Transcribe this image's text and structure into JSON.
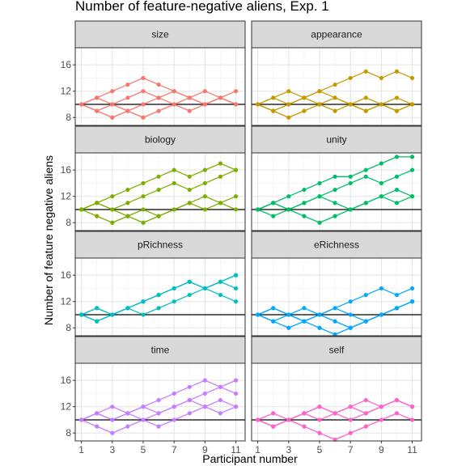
{
  "chart_data": {
    "type": "line",
    "title": "Number of feature-negative aliens, Exp. 1",
    "xlabel": "Participant number",
    "ylabel": "Number of feature negative aliens",
    "x_ticks": [
      "1",
      "3",
      "5",
      "7",
      "9",
      "11"
    ],
    "y_ticks": [
      "8",
      "12",
      "16"
    ],
    "xlim": [
      0.6,
      11.6
    ],
    "ylim": [
      6.8,
      18.6
    ],
    "reference_line": 10,
    "grid": true,
    "facets": [
      {
        "name": "size",
        "color": "#F8766D",
        "series": [
          {
            "x": [
              1,
              2,
              3,
              4,
              5,
              6,
              7,
              8,
              9,
              10,
              11
            ],
            "y": [
              10,
              11,
              12,
              13,
              14,
              13,
              12,
              11,
              10,
              11,
              12
            ]
          },
          {
            "x": [
              1,
              2,
              3,
              4,
              5,
              6,
              7,
              8,
              9,
              10,
              11
            ],
            "y": [
              10,
              9,
              8,
              9,
              10,
              11,
              12,
              11,
              10,
              11,
              10
            ]
          },
          {
            "x": [
              1,
              2,
              3,
              4,
              5,
              6,
              7,
              8,
              9,
              10,
              11
            ],
            "y": [
              10,
              9,
              10,
              9,
              8,
              9,
              10,
              11,
              12,
              11,
              10
            ]
          },
          {
            "x": [
              1,
              2,
              3,
              4,
              5,
              6,
              7,
              8,
              9,
              10,
              11
            ],
            "y": [
              10,
              11,
              10,
              11,
              12,
              11,
              10,
              9,
              10,
              11,
              10
            ]
          }
        ]
      },
      {
        "name": "appearance",
        "color": "#C49A00",
        "series": [
          {
            "x": [
              1,
              2,
              3,
              4,
              5,
              6,
              7,
              8,
              9,
              10,
              11
            ],
            "y": [
              10,
              11,
              12,
              11,
              12,
              13,
              14,
              15,
              14,
              15,
              14
            ]
          },
          {
            "x": [
              1,
              2,
              3,
              4,
              5,
              6,
              7,
              8,
              9,
              10,
              11
            ],
            "y": [
              10,
              9,
              10,
              11,
              10,
              11,
              10,
              9,
              10,
              11,
              10
            ]
          },
          {
            "x": [
              1,
              2,
              3,
              4,
              5,
              6,
              7,
              8,
              9,
              10,
              11
            ],
            "y": [
              10,
              9,
              8,
              9,
              10,
              9,
              10,
              11,
              10,
              9,
              10
            ]
          },
          {
            "x": [
              1,
              2,
              3,
              4,
              5,
              6,
              7,
              8,
              9,
              10,
              11
            ],
            "y": [
              10,
              11,
              10,
              11,
              12,
              11,
              10,
              9,
              10,
              9,
              10
            ]
          }
        ]
      },
      {
        "name": "biology",
        "color": "#7CAE00",
        "series": [
          {
            "x": [
              1,
              2,
              3,
              4,
              5,
              6,
              7,
              8,
              9,
              10,
              11
            ],
            "y": [
              10,
              11,
              12,
              13,
              14,
              15,
              16,
              15,
              16,
              17,
              16
            ]
          },
          {
            "x": [
              1,
              2,
              3,
              4,
              5,
              6,
              7,
              8,
              9,
              10,
              11
            ],
            "y": [
              10,
              11,
              10,
              11,
              12,
              13,
              14,
              13,
              14,
              15,
              16
            ]
          },
          {
            "x": [
              1,
              2,
              3,
              4,
              5,
              6,
              7,
              8,
              9,
              10,
              11
            ],
            "y": [
              10,
              9,
              8,
              9,
              10,
              9,
              10,
              11,
              12,
              11,
              12
            ]
          },
          {
            "x": [
              1,
              2,
              3,
              4,
              5,
              6,
              7,
              8,
              9,
              10,
              11
            ],
            "y": [
              10,
              11,
              10,
              9,
              8,
              9,
              10,
              11,
              10,
              11,
              10
            ]
          }
        ]
      },
      {
        "name": "unity",
        "color": "#00BE67",
        "series": [
          {
            "x": [
              1,
              2,
              3,
              4,
              5,
              6,
              7,
              8,
              9,
              10,
              11
            ],
            "y": [
              10,
              11,
              12,
              13,
              14,
              15,
              15,
              16,
              17,
              18,
              18
            ]
          },
          {
            "x": [
              1,
              2,
              3,
              4,
              5,
              6,
              7,
              8,
              9,
              10,
              11
            ],
            "y": [
              10,
              11,
              10,
              11,
              12,
              13,
              14,
              15,
              14,
              15,
              16
            ]
          },
          {
            "x": [
              1,
              2,
              3,
              4,
              5,
              6,
              7,
              8,
              9,
              10,
              11
            ],
            "y": [
              10,
              9,
              10,
              11,
              12,
              11,
              10,
              11,
              12,
              11,
              12
            ]
          },
          {
            "x": [
              1,
              2,
              3,
              4,
              5,
              6,
              7,
              8,
              9,
              10,
              11
            ],
            "y": [
              10,
              11,
              10,
              9,
              8,
              9,
              10,
              11,
              12,
              13,
              12
            ]
          }
        ]
      },
      {
        "name": "pRichness",
        "color": "#00BFC4",
        "series": [
          {
            "x": [
              1,
              2,
              3,
              4,
              5,
              6,
              7,
              8,
              9,
              10,
              11
            ],
            "y": [
              10,
              11,
              10,
              11,
              12,
              13,
              14,
              15,
              14,
              15,
              16
            ]
          },
          {
            "x": [
              1,
              2,
              3,
              4,
              5,
              6,
              7,
              8,
              9,
              10,
              11
            ],
            "y": [
              10,
              9,
              10,
              11,
              12,
              13,
              14,
              15,
              14,
              15,
              14
            ]
          },
          {
            "x": [
              1,
              2,
              3,
              4,
              5,
              6,
              7,
              8,
              9,
              10,
              11
            ],
            "y": [
              10,
              11,
              10,
              11,
              10,
              11,
              12,
              13,
              14,
              15,
              16
            ]
          },
          {
            "x": [
              1,
              2,
              3,
              4,
              5,
              6,
              7,
              8,
              9,
              10,
              11
            ],
            "y": [
              10,
              9,
              10,
              11,
              12,
              13,
              14,
              15,
              14,
              13,
              12
            ]
          }
        ]
      },
      {
        "name": "eRichness",
        "color": "#00A9FF",
        "series": [
          {
            "x": [
              1,
              2,
              3,
              4,
              5,
              6,
              7,
              8,
              9,
              10,
              11
            ],
            "y": [
              10,
              11,
              10,
              9,
              10,
              11,
              12,
              13,
              14,
              13,
              14
            ]
          },
          {
            "x": [
              1,
              2,
              3,
              4,
              5,
              6,
              7,
              8,
              9,
              10,
              11
            ],
            "y": [
              10,
              9,
              8,
              9,
              10,
              11,
              10,
              9,
              10,
              11,
              12
            ]
          },
          {
            "x": [
              1,
              2,
              3,
              4,
              5,
              6,
              7,
              8,
              9,
              10,
              11
            ],
            "y": [
              10,
              11,
              10,
              11,
              10,
              9,
              8,
              9,
              10,
              11,
              12
            ]
          },
          {
            "x": [
              1,
              2,
              3,
              4,
              5,
              6,
              7,
              8,
              9,
              10,
              11
            ],
            "y": [
              10,
              9,
              10,
              9,
              8,
              7,
              8,
              9,
              10,
              11,
              12
            ]
          }
        ]
      },
      {
        "name": "time",
        "color": "#C77CFF",
        "series": [
          {
            "x": [
              1,
              2,
              3,
              4,
              5,
              6,
              7,
              8,
              9,
              10,
              11
            ],
            "y": [
              10,
              11,
              12,
              11,
              12,
              13,
              14,
              15,
              16,
              15,
              16
            ]
          },
          {
            "x": [
              1,
              2,
              3,
              4,
              5,
              6,
              7,
              8,
              9,
              10,
              11
            ],
            "y": [
              10,
              11,
              10,
              11,
              12,
              11,
              12,
              13,
              14,
              15,
              14
            ]
          },
          {
            "x": [
              1,
              2,
              3,
              4,
              5,
              6,
              7,
              8,
              9,
              10,
              11
            ],
            "y": [
              10,
              9,
              8,
              9,
              10,
              11,
              12,
              13,
              12,
              13,
              12
            ]
          },
          {
            "x": [
              1,
              2,
              3,
              4,
              5,
              6,
              7,
              8,
              9,
              10,
              11
            ],
            "y": [
              10,
              11,
              10,
              11,
              10,
              9,
              10,
              11,
              12,
              11,
              12
            ]
          }
        ]
      },
      {
        "name": "self",
        "color": "#FF61CC",
        "series": [
          {
            "x": [
              1,
              2,
              3,
              4,
              5,
              6,
              7,
              8,
              9,
              10,
              11
            ],
            "y": [
              10,
              11,
              10,
              11,
              12,
              11,
              12,
              13,
              12,
              13,
              12
            ]
          },
          {
            "x": [
              1,
              2,
              3,
              4,
              5,
              6,
              7,
              8,
              9,
              10,
              11
            ],
            "y": [
              10,
              9,
              10,
              11,
              10,
              11,
              12,
              11,
              12,
              13,
              12
            ]
          },
          {
            "x": [
              1,
              2,
              3,
              4,
              5,
              6,
              7,
              8,
              9,
              10,
              11
            ],
            "y": [
              10,
              9,
              10,
              9,
              8,
              7,
              8,
              9,
              10,
              11,
              10
            ]
          },
          {
            "x": [
              1,
              2,
              3,
              4,
              5,
              6,
              7,
              8,
              9,
              10,
              11
            ],
            "y": [
              10,
              9,
              10,
              11,
              12,
              11,
              10,
              11,
              12,
              13,
              12
            ]
          }
        ]
      }
    ]
  }
}
